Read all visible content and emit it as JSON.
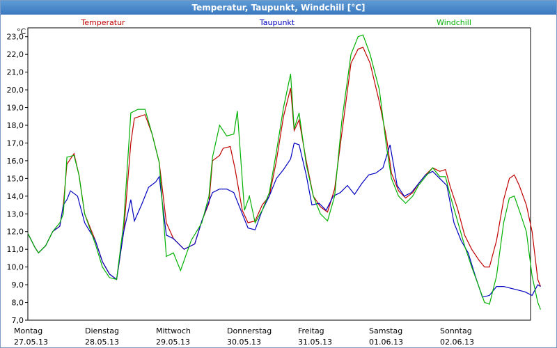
{
  "window": {
    "title": "Temperatur, Taupunkt, Windchill [°C]"
  },
  "chart_data": {
    "type": "line",
    "title": "Temperatur, Taupunkt, Windchill [°C]",
    "ylabel": "°C",
    "ylim": [
      7.0,
      23.5
    ],
    "yticks": [
      "7,0",
      "8,0",
      "9,0",
      "10,0",
      "11,0",
      "12,0",
      "13,0",
      "14,0",
      "15,0",
      "16,0",
      "17,0",
      "18,0",
      "19,0",
      "20,0",
      "21,0",
      "22,0",
      "23,0"
    ],
    "x_range_days": [
      0,
      7
    ],
    "day_labels": [
      {
        "day": "Montag",
        "date": "27.05.13"
      },
      {
        "day": "Dienstag",
        "date": "28.05.13"
      },
      {
        "day": "Mittwoch",
        "date": "29.05.13"
      },
      {
        "day": "Donnerstag",
        "date": "30.05.13"
      },
      {
        "day": "Freitag",
        "date": "31.05.13"
      },
      {
        "day": "Samstag",
        "date": "01.06.13"
      },
      {
        "day": "Sonntag",
        "date": "02.06.13"
      }
    ],
    "grid": true,
    "series": [
      {
        "name": "Temperatur",
        "color": "#c00000",
        "points": [
          [
            0,
            11.9
          ],
          [
            0.1,
            11.1
          ],
          [
            0.15,
            10.8
          ],
          [
            0.25,
            11.2
          ],
          [
            0.35,
            12.0
          ],
          [
            0.45,
            12.3
          ],
          [
            0.5,
            13.5
          ],
          [
            0.55,
            15.8
          ],
          [
            0.65,
            16.4
          ],
          [
            0.72,
            15.2
          ],
          [
            0.8,
            13.0
          ],
          [
            0.95,
            11.5
          ],
          [
            1.05,
            10.3
          ],
          [
            1.15,
            9.6
          ],
          [
            1.25,
            9.3
          ],
          [
            1.35,
            12.0
          ],
          [
            1.45,
            17.0
          ],
          [
            1.5,
            18.4
          ],
          [
            1.65,
            18.6
          ],
          [
            1.75,
            17.5
          ],
          [
            1.85,
            15.9
          ],
          [
            1.95,
            12.5
          ],
          [
            2.05,
            11.6
          ],
          [
            2.2,
            11.0
          ],
          [
            2.35,
            11.3
          ],
          [
            2.45,
            12.6
          ],
          [
            2.55,
            13.6
          ],
          [
            2.6,
            16.0
          ],
          [
            2.7,
            16.3
          ],
          [
            2.75,
            16.7
          ],
          [
            2.85,
            16.8
          ],
          [
            2.92,
            15.5
          ],
          [
            3.02,
            13.2
          ],
          [
            3.1,
            12.5
          ],
          [
            3.2,
            12.6
          ],
          [
            3.3,
            13.5
          ],
          [
            3.4,
            14.0
          ],
          [
            3.5,
            16.0
          ],
          [
            3.6,
            18.5
          ],
          [
            3.7,
            20.1
          ],
          [
            3.75,
            17.7
          ],
          [
            3.82,
            18.3
          ],
          [
            3.92,
            16.0
          ],
          [
            4.02,
            14.0
          ],
          [
            4.12,
            13.4
          ],
          [
            4.22,
            13.1
          ],
          [
            4.32,
            14.4
          ],
          [
            4.42,
            17.5
          ],
          [
            4.55,
            21.5
          ],
          [
            4.65,
            22.3
          ],
          [
            4.72,
            22.4
          ],
          [
            4.82,
            21.5
          ],
          [
            4.95,
            19.3
          ],
          [
            5.05,
            17.3
          ],
          [
            5.12,
            15.3
          ],
          [
            5.22,
            14.3
          ],
          [
            5.32,
            13.9
          ],
          [
            5.42,
            14.2
          ],
          [
            5.5,
            14.7
          ],
          [
            5.6,
            15.2
          ],
          [
            5.7,
            15.6
          ],
          [
            5.8,
            15.4
          ],
          [
            5.88,
            15.5
          ],
          [
            5.95,
            14.5
          ],
          [
            6.05,
            13.3
          ],
          [
            6.15,
            11.8
          ],
          [
            6.25,
            11.0
          ],
          [
            6.35,
            10.4
          ],
          [
            6.43,
            10.0
          ],
          [
            6.5,
            10.0
          ],
          [
            6.6,
            11.5
          ],
          [
            6.7,
            13.8
          ],
          [
            6.78,
            15.0
          ],
          [
            6.85,
            15.2
          ],
          [
            6.92,
            14.6
          ],
          [
            7.02,
            13.5
          ],
          [
            7.1,
            12.0
          ],
          [
            7.18,
            9.3
          ],
          [
            7.22,
            8.9
          ]
        ]
      },
      {
        "name": "Taupunkt",
        "color": "#0000c0",
        "points": [
          [
            0,
            11.9
          ],
          [
            0.1,
            11.1
          ],
          [
            0.15,
            10.8
          ],
          [
            0.25,
            11.2
          ],
          [
            0.35,
            12.0
          ],
          [
            0.45,
            12.3
          ],
          [
            0.5,
            13.5
          ],
          [
            0.55,
            13.8
          ],
          [
            0.6,
            14.3
          ],
          [
            0.7,
            14.0
          ],
          [
            0.8,
            12.5
          ],
          [
            0.95,
            11.5
          ],
          [
            1.05,
            10.3
          ],
          [
            1.15,
            9.6
          ],
          [
            1.25,
            9.3
          ],
          [
            1.35,
            12.0
          ],
          [
            1.45,
            13.8
          ],
          [
            1.5,
            12.6
          ],
          [
            1.6,
            13.5
          ],
          [
            1.7,
            14.5
          ],
          [
            1.8,
            14.8
          ],
          [
            1.85,
            15.1
          ],
          [
            1.95,
            11.8
          ],
          [
            2.05,
            11.6
          ],
          [
            2.2,
            11.0
          ],
          [
            2.35,
            11.3
          ],
          [
            2.45,
            12.6
          ],
          [
            2.55,
            13.7
          ],
          [
            2.6,
            14.2
          ],
          [
            2.7,
            14.4
          ],
          [
            2.8,
            14.4
          ],
          [
            2.9,
            14.2
          ],
          [
            3.0,
            13.2
          ],
          [
            3.1,
            12.2
          ],
          [
            3.2,
            12.1
          ],
          [
            3.3,
            13.2
          ],
          [
            3.4,
            14.0
          ],
          [
            3.5,
            15.0
          ],
          [
            3.6,
            15.5
          ],
          [
            3.7,
            16.1
          ],
          [
            3.75,
            17.0
          ],
          [
            3.82,
            16.9
          ],
          [
            3.92,
            15.2
          ],
          [
            4.0,
            13.5
          ],
          [
            4.1,
            13.6
          ],
          [
            4.2,
            13.2
          ],
          [
            4.3,
            14.0
          ],
          [
            4.4,
            14.2
          ],
          [
            4.5,
            14.6
          ],
          [
            4.6,
            14.1
          ],
          [
            4.7,
            14.7
          ],
          [
            4.8,
            15.2
          ],
          [
            4.9,
            15.3
          ],
          [
            5.0,
            15.6
          ],
          [
            5.1,
            16.9
          ],
          [
            5.2,
            14.6
          ],
          [
            5.3,
            14.0
          ],
          [
            5.4,
            14.2
          ],
          [
            5.5,
            14.7
          ],
          [
            5.6,
            15.2
          ],
          [
            5.7,
            15.4
          ],
          [
            5.8,
            15.0
          ],
          [
            5.9,
            14.6
          ],
          [
            6.0,
            12.5
          ],
          [
            6.1,
            11.5
          ],
          [
            6.2,
            10.8
          ],
          [
            6.3,
            9.5
          ],
          [
            6.4,
            8.3
          ],
          [
            6.5,
            8.4
          ],
          [
            6.6,
            8.9
          ],
          [
            6.7,
            8.9
          ],
          [
            6.8,
            8.8
          ],
          [
            6.9,
            8.7
          ],
          [
            7.0,
            8.6
          ],
          [
            7.1,
            8.4
          ],
          [
            7.18,
            9.0
          ],
          [
            7.22,
            8.9
          ]
        ]
      },
      {
        "name": "Windchill",
        "color": "#00b000",
        "points": [
          [
            0,
            11.9
          ],
          [
            0.1,
            11.1
          ],
          [
            0.15,
            10.8
          ],
          [
            0.25,
            11.2
          ],
          [
            0.35,
            12.0
          ],
          [
            0.45,
            12.5
          ],
          [
            0.5,
            13.0
          ],
          [
            0.55,
            16.2
          ],
          [
            0.65,
            16.3
          ],
          [
            0.72,
            15.2
          ],
          [
            0.8,
            13.0
          ],
          [
            0.95,
            11.3
          ],
          [
            1.05,
            10.0
          ],
          [
            1.15,
            9.4
          ],
          [
            1.25,
            9.3
          ],
          [
            1.35,
            12.5
          ],
          [
            1.45,
            18.7
          ],
          [
            1.55,
            18.9
          ],
          [
            1.65,
            18.9
          ],
          [
            1.75,
            17.5
          ],
          [
            1.85,
            15.9
          ],
          [
            1.95,
            10.6
          ],
          [
            2.05,
            10.8
          ],
          [
            2.15,
            9.8
          ],
          [
            2.3,
            11.5
          ],
          [
            2.45,
            12.5
          ],
          [
            2.55,
            14.0
          ],
          [
            2.6,
            16.2
          ],
          [
            2.7,
            18.0
          ],
          [
            2.8,
            17.4
          ],
          [
            2.9,
            17.5
          ],
          [
            2.95,
            18.8
          ],
          [
            3.05,
            13.2
          ],
          [
            3.12,
            14.0
          ],
          [
            3.2,
            12.5
          ],
          [
            3.3,
            13.2
          ],
          [
            3.4,
            14.2
          ],
          [
            3.5,
            16.5
          ],
          [
            3.6,
            19.0
          ],
          [
            3.7,
            20.9
          ],
          [
            3.75,
            17.8
          ],
          [
            3.82,
            18.7
          ],
          [
            3.92,
            15.8
          ],
          [
            4.02,
            14.0
          ],
          [
            4.12,
            13.0
          ],
          [
            4.22,
            12.6
          ],
          [
            4.32,
            14.0
          ],
          [
            4.42,
            18.2
          ],
          [
            4.55,
            22.0
          ],
          [
            4.65,
            23.0
          ],
          [
            4.72,
            23.1
          ],
          [
            4.82,
            22.0
          ],
          [
            4.95,
            20.0
          ],
          [
            5.05,
            16.8
          ],
          [
            5.12,
            15.0
          ],
          [
            5.22,
            14.0
          ],
          [
            5.32,
            13.6
          ],
          [
            5.42,
            14.0
          ],
          [
            5.5,
            14.6
          ],
          [
            5.6,
            15.1
          ],
          [
            5.7,
            15.6
          ],
          [
            5.8,
            15.1
          ],
          [
            5.88,
            15.1
          ],
          [
            5.95,
            14.0
          ],
          [
            6.05,
            12.6
          ],
          [
            6.15,
            11.2
          ],
          [
            6.25,
            10.0
          ],
          [
            6.35,
            8.9
          ],
          [
            6.43,
            8.0
          ],
          [
            6.5,
            7.9
          ],
          [
            6.6,
            9.5
          ],
          [
            6.7,
            12.5
          ],
          [
            6.78,
            13.9
          ],
          [
            6.85,
            14.0
          ],
          [
            6.92,
            13.2
          ],
          [
            7.02,
            12.0
          ],
          [
            7.1,
            9.5
          ],
          [
            7.18,
            8.0
          ],
          [
            7.22,
            7.6
          ]
        ]
      }
    ],
    "legend_placement": "top"
  }
}
